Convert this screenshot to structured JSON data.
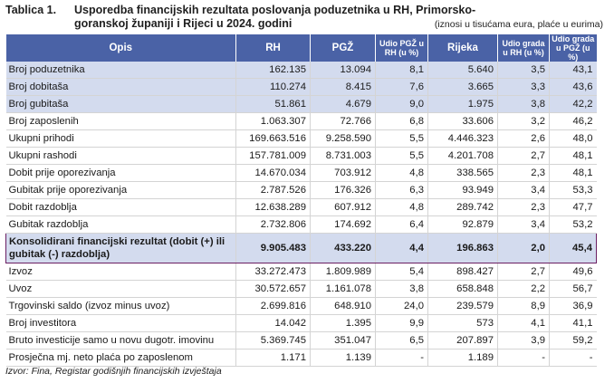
{
  "caption": {
    "label": "Tablica 1.",
    "title": "Usporedba financijskih rezultata poslovanja poduzetnika u RH, Primorsko-goranskoj županiji i Rijeci u 2024. godini",
    "note": "(iznosi u tisućama eura, plaće u eurima)"
  },
  "headers": [
    "Opis",
    "RH",
    "PGŽ",
    "Udio PGŽ u RH (u %)",
    "Rijeka",
    "Udio grada u RH (u %)",
    "Udio grada u PGŽ (u %)"
  ],
  "rows": [
    {
      "desc": "Broj poduzetnika",
      "rh": "162.135",
      "pgz": "13.094",
      "u1": "8,1",
      "rijeka": "5.640",
      "u2": "3,5",
      "u3": "43,1",
      "hl": true
    },
    {
      "desc": "Broj dobitaša",
      "rh": "110.274",
      "pgz": "8.415",
      "u1": "7,6",
      "rijeka": "3.665",
      "u2": "3,3",
      "u3": "43,6",
      "hl": true
    },
    {
      "desc": "Broj gubitaša",
      "rh": "51.861",
      "pgz": "4.679",
      "u1": "9,0",
      "rijeka": "1.975",
      "u2": "3,8",
      "u3": "42,2",
      "hl": true
    },
    {
      "desc": "Broj zaposlenih",
      "rh": "1.063.307",
      "pgz": "72.766",
      "u1": "6,8",
      "rijeka": "33.606",
      "u2": "3,2",
      "u3": "46,2"
    },
    {
      "desc": "Ukupni prihodi",
      "rh": "169.663.516",
      "pgz": "9.258.590",
      "u1": "5,5",
      "rijeka": "4.446.323",
      "u2": "2,6",
      "u3": "48,0"
    },
    {
      "desc": "Ukupni rashodi",
      "rh": "157.781.009",
      "pgz": "8.731.003",
      "u1": "5,5",
      "rijeka": "4.201.708",
      "u2": "2,7",
      "u3": "48,1"
    },
    {
      "desc": "Dobit prije oporezivanja",
      "rh": "14.670.034",
      "pgz": "703.912",
      "u1": "4,8",
      "rijeka": "338.565",
      "u2": "2,3",
      "u3": "48,1"
    },
    {
      "desc": "Gubitak prije oporezivanja",
      "rh": "2.787.526",
      "pgz": "176.326",
      "u1": "6,3",
      "rijeka": "93.949",
      "u2": "3,4",
      "u3": "53,3"
    },
    {
      "desc": "Dobit razdoblja",
      "rh": "12.638.289",
      "pgz": "607.912",
      "u1": "4,8",
      "rijeka": "289.742",
      "u2": "2,3",
      "u3": "47,7"
    },
    {
      "desc": "Gubitak razdoblja",
      "rh": "2.732.806",
      "pgz": "174.692",
      "u1": "6,4",
      "rijeka": "92.879",
      "u2": "3,4",
      "u3": "53,2"
    },
    {
      "desc": "Konsolidirani financijski rezultat (dobit (+) ili gubitak (-) razdoblja)",
      "rh": "9.905.483",
      "pgz": "433.220",
      "u1": "4,4",
      "rijeka": "196.863",
      "u2": "2,0",
      "u3": "45,4",
      "hl": true,
      "total": true
    },
    {
      "desc": "Izvoz",
      "rh": "33.272.473",
      "pgz": "1.809.989",
      "u1": "5,4",
      "rijeka": "898.427",
      "u2": "2,7",
      "u3": "49,6"
    },
    {
      "desc": "Uvoz",
      "rh": "30.572.657",
      "pgz": "1.161.078",
      "u1": "3,8",
      "rijeka": "658.848",
      "u2": "2,2",
      "u3": "56,7"
    },
    {
      "desc": "Trgovinski saldo (izvoz minus uvoz)",
      "rh": "2.699.816",
      "pgz": "648.910",
      "u1": "24,0",
      "rijeka": "239.579",
      "u2": "8,9",
      "u3": "36,9"
    },
    {
      "desc": "Broj investitora",
      "rh": "14.042",
      "pgz": "1.395",
      "u1": "9,9",
      "rijeka": "573",
      "u2": "4,1",
      "u3": "41,1"
    },
    {
      "desc": "Bruto investicije samo u novu dugotr. imovinu",
      "rh": "5.369.745",
      "pgz": "351.047",
      "u1": "6,5",
      "rijeka": "207.897",
      "u2": "3,9",
      "u3": "59,2"
    },
    {
      "desc": "Prosječna mj. neto plaća po zaposlenom",
      "rh": "1.171",
      "pgz": "1.139",
      "u1": "-",
      "rijeka": "1.189",
      "u2": "-",
      "u3": "-"
    }
  ],
  "source": "Izvor: Fina, Registar godišnjih financijskih izvještaja"
}
